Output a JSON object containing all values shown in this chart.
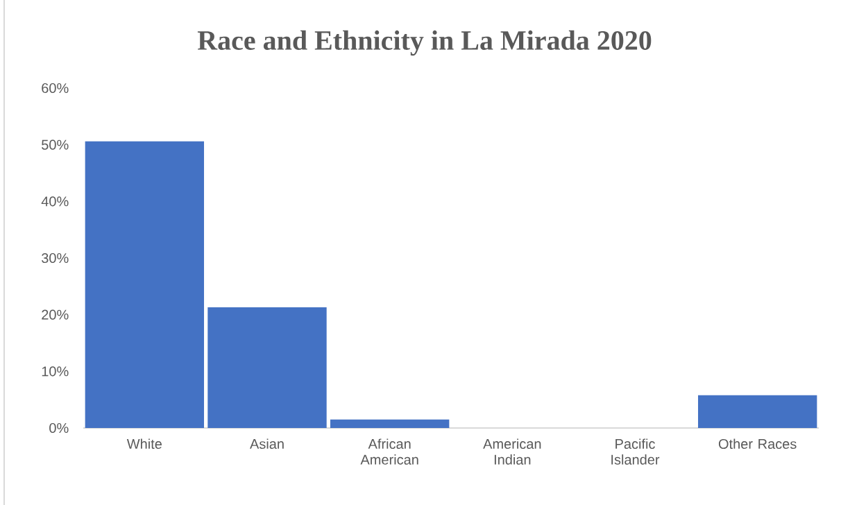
{
  "chart_data": {
    "type": "bar",
    "title": "Race and Ethnicity in La Mirada 2020",
    "categories": [
      "White",
      "Asian",
      "African American",
      "American Indian",
      "Pacific Islander",
      "Other Races"
    ],
    "values": [
      50.6,
      21.3,
      1.5,
      0,
      0,
      5.8
    ],
    "color": "#4472c4",
    "ylim": [
      0,
      60
    ],
    "yticks": [
      {
        "value": 0,
        "label": "0%"
      },
      {
        "value": 10,
        "label": "10%"
      },
      {
        "value": 20,
        "label": "20%"
      },
      {
        "value": 30,
        "label": "30%"
      },
      {
        "value": 40,
        "label": "40%"
      },
      {
        "value": 50,
        "label": "50%"
      },
      {
        "value": 60,
        "label": "60%"
      }
    ]
  }
}
